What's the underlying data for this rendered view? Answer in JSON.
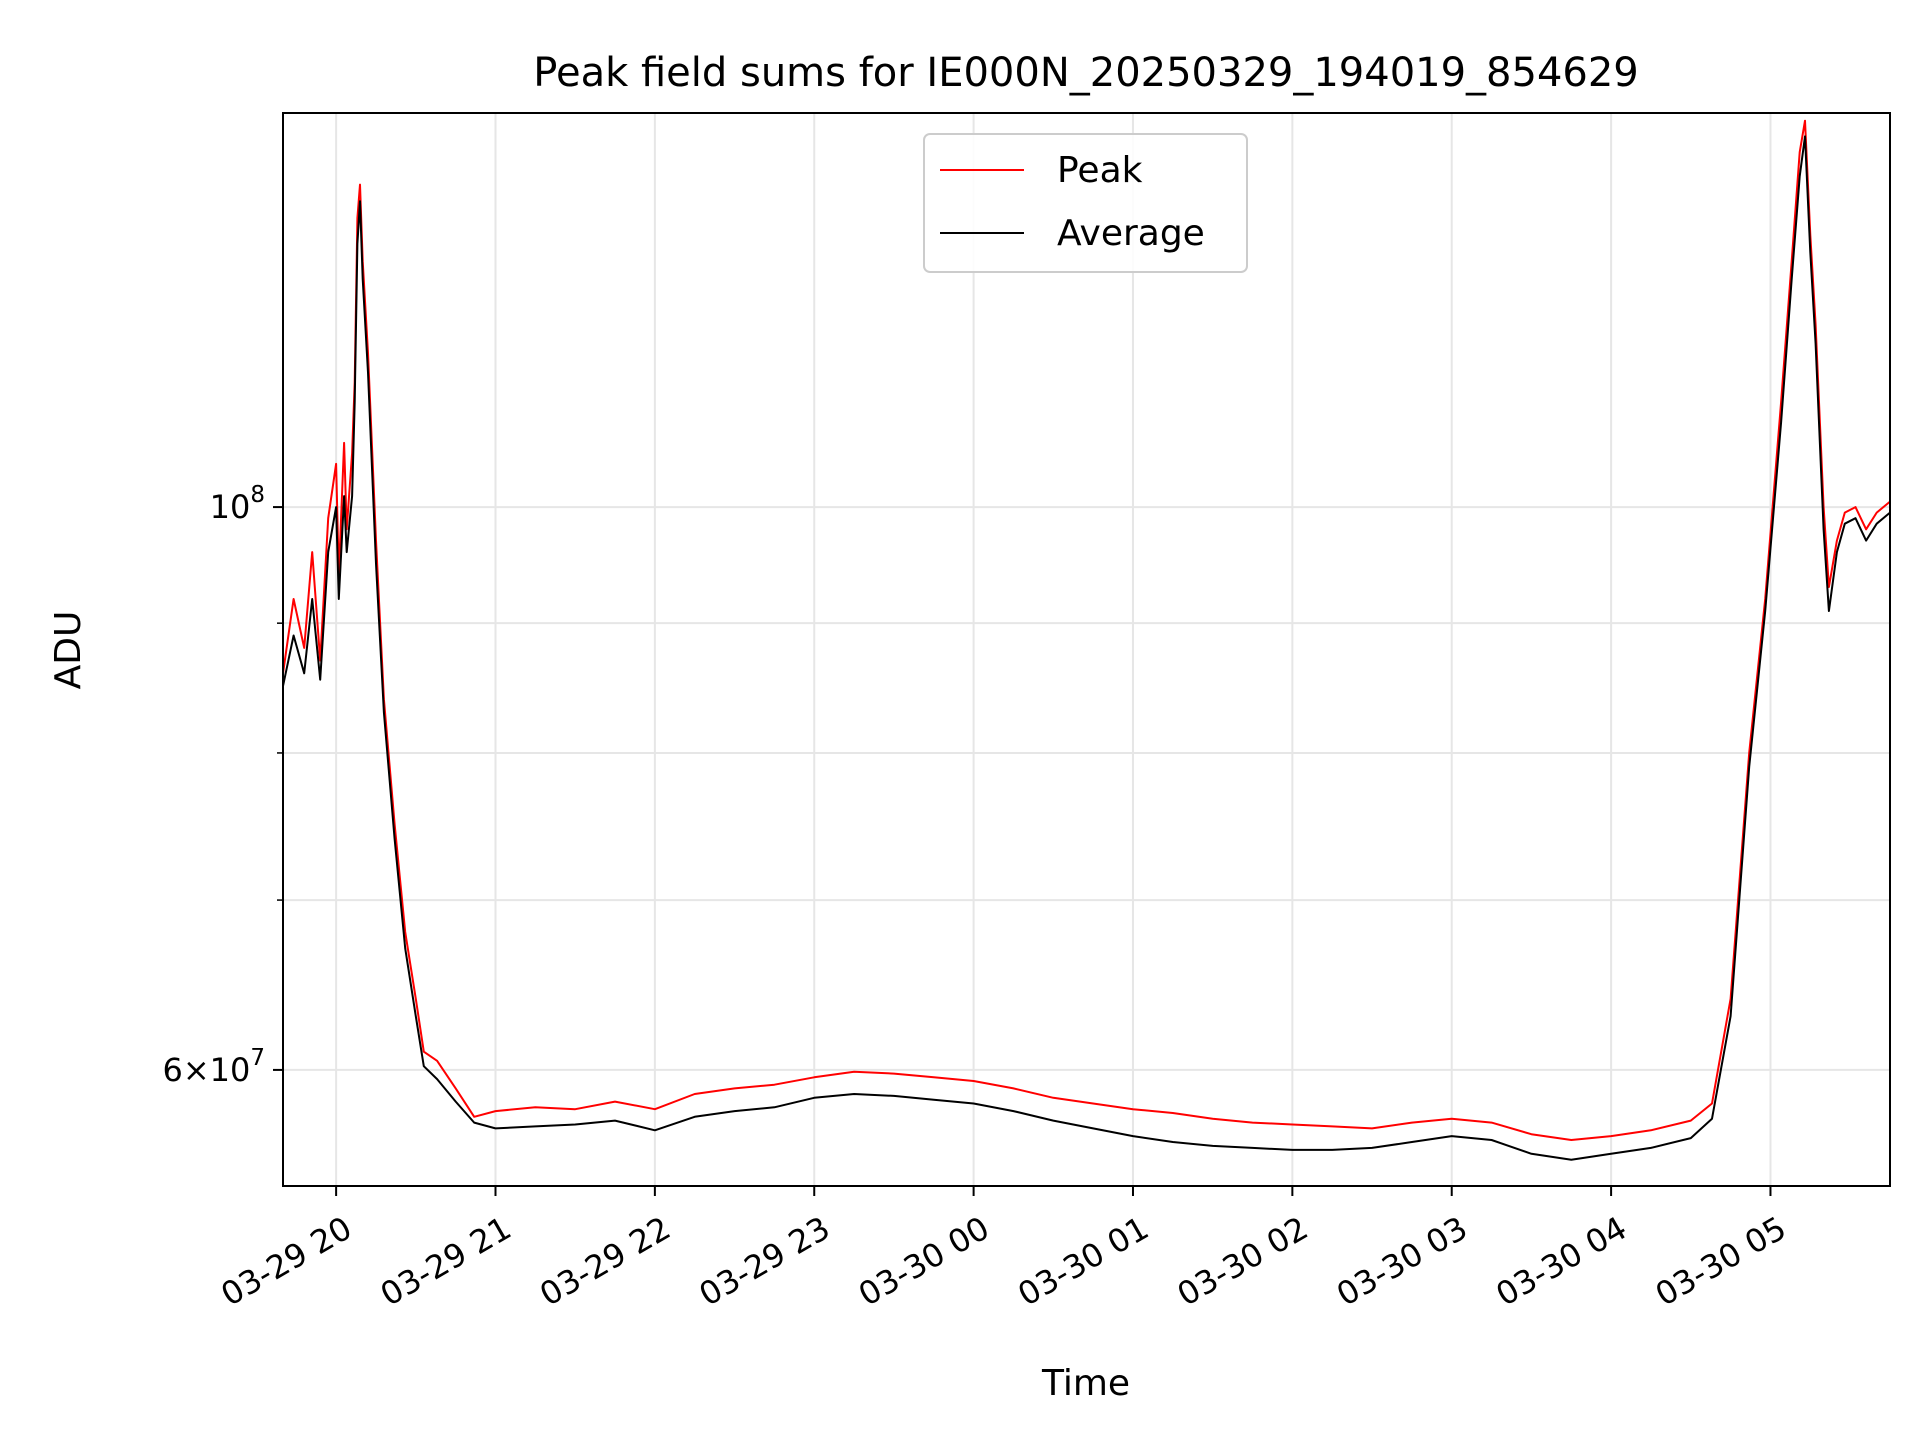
{
  "chart_data": {
    "type": "line",
    "title": "Peak field sums for IE000N_20250329_194019_854629",
    "xlabel": "Time",
    "ylabel": "ADU",
    "yscale": "log",
    "ylim": [
      54000000,
      143000000
    ],
    "xlim": [
      "03-29 19:40",
      "03-30 05:45"
    ],
    "x_ticks": [
      "03-29 20",
      "03-29 21",
      "03-29 22",
      "03-29 23",
      "03-30 00",
      "03-30 01",
      "03-30 02",
      "03-30 03",
      "03-30 04",
      "03-30 05"
    ],
    "y_ticks": [
      {
        "value": 100000000,
        "base": "10",
        "exp": "8"
      },
      {
        "value": 60000000,
        "prefix": "6×",
        "base": "10",
        "exp": "7"
      }
    ],
    "y_minor_ticks": [
      70000000,
      80000000,
      90000000
    ],
    "grid": true,
    "legend_position": "top-center",
    "series": [
      {
        "name": "Peak",
        "color": "#ff0000",
        "points": [
          [
            "03-29 19:40",
            86000000
          ],
          [
            "03-29 19:44",
            92000000
          ],
          [
            "03-29 19:48",
            88000000
          ],
          [
            "03-29 19:51",
            96000000
          ],
          [
            "03-29 19:54",
            87000000
          ],
          [
            "03-29 19:57",
            99000000
          ],
          [
            "03-29 20:00",
            104000000
          ],
          [
            "03-29 20:01",
            94000000
          ],
          [
            "03-29 20:03",
            106000000
          ],
          [
            "03-29 20:04",
            98000000
          ],
          [
            "03-29 20:06",
            105000000
          ],
          [
            "03-29 20:07",
            112000000
          ],
          [
            "03-29 20:08",
            130000000
          ],
          [
            "03-29 20:09",
            134000000
          ],
          [
            "03-29 20:10",
            125000000
          ],
          [
            "03-29 20:12",
            115000000
          ],
          [
            "03-29 20:15",
            97000000
          ],
          [
            "03-29 20:18",
            84000000
          ],
          [
            "03-29 20:22",
            75000000
          ],
          [
            "03-29 20:26",
            68000000
          ],
          [
            "03-29 20:30",
            64000000
          ],
          [
            "03-29 20:33",
            61000000
          ],
          [
            "03-29 20:38",
            60500000
          ],
          [
            "03-29 20:45",
            59000000
          ],
          [
            "03-29 20:52",
            57500000
          ],
          [
            "03-29 21:00",
            57800000
          ],
          [
            "03-29 21:15",
            58000000
          ],
          [
            "03-29 21:30",
            57900000
          ],
          [
            "03-29 21:45",
            58300000
          ],
          [
            "03-29 22:00",
            57900000
          ],
          [
            "03-29 22:15",
            58700000
          ],
          [
            "03-29 22:30",
            59000000
          ],
          [
            "03-29 22:45",
            59200000
          ],
          [
            "03-29 23:00",
            59600000
          ],
          [
            "03-29 23:15",
            59900000
          ],
          [
            "03-29 23:30",
            59800000
          ],
          [
            "03-29 23:45",
            59600000
          ],
          [
            "03-30 00:00",
            59400000
          ],
          [
            "03-30 00:15",
            59000000
          ],
          [
            "03-30 00:30",
            58500000
          ],
          [
            "03-30 00:45",
            58200000
          ],
          [
            "03-30 01:00",
            57900000
          ],
          [
            "03-30 01:15",
            57700000
          ],
          [
            "03-30 01:30",
            57400000
          ],
          [
            "03-30 01:45",
            57200000
          ],
          [
            "03-30 02:00",
            57100000
          ],
          [
            "03-30 02:15",
            57000000
          ],
          [
            "03-30 02:30",
            56900000
          ],
          [
            "03-30 02:45",
            57200000
          ],
          [
            "03-30 03:00",
            57400000
          ],
          [
            "03-30 03:15",
            57200000
          ],
          [
            "03-30 03:30",
            56600000
          ],
          [
            "03-30 03:45",
            56300000
          ],
          [
            "03-30 04:00",
            56500000
          ],
          [
            "03-30 04:15",
            56800000
          ],
          [
            "03-30 04:30",
            57300000
          ],
          [
            "03-30 04:38",
            58200000
          ],
          [
            "03-30 04:45",
            64000000
          ],
          [
            "03-30 04:52",
            80000000
          ],
          [
            "03-30 04:58",
            92000000
          ],
          [
            "03-30 05:04",
            110000000
          ],
          [
            "03-30 05:08",
            125000000
          ],
          [
            "03-30 05:11",
            138000000
          ],
          [
            "03-30 05:13",
            142000000
          ],
          [
            "03-30 05:15",
            128000000
          ],
          [
            "03-30 05:17",
            118000000
          ],
          [
            "03-30 05:20",
            100000000
          ],
          [
            "03-30 05:22",
            93000000
          ],
          [
            "03-30 05:25",
            97000000
          ],
          [
            "03-30 05:28",
            99500000
          ],
          [
            "03-30 05:32",
            100000000
          ],
          [
            "03-30 05:36",
            98000000
          ],
          [
            "03-30 05:40",
            99500000
          ],
          [
            "03-30 05:45",
            100500000
          ]
        ]
      },
      {
        "name": "Average",
        "color": "#000000",
        "points": [
          [
            "03-29 19:40",
            85000000
          ],
          [
            "03-29 19:44",
            89000000
          ],
          [
            "03-29 19:48",
            86000000
          ],
          [
            "03-29 19:51",
            92000000
          ],
          [
            "03-29 19:54",
            85500000
          ],
          [
            "03-29 19:57",
            96000000
          ],
          [
            "03-29 20:00",
            100000000
          ],
          [
            "03-29 20:01",
            92000000
          ],
          [
            "03-29 20:03",
            101000000
          ],
          [
            "03-29 20:04",
            96000000
          ],
          [
            "03-29 20:06",
            101000000
          ],
          [
            "03-29 20:07",
            110000000
          ],
          [
            "03-29 20:08",
            127000000
          ],
          [
            "03-29 20:09",
            132000000
          ],
          [
            "03-29 20:10",
            123000000
          ],
          [
            "03-29 20:12",
            113000000
          ],
          [
            "03-29 20:15",
            95000000
          ],
          [
            "03-29 20:18",
            83000000
          ],
          [
            "03-29 20:22",
            74000000
          ],
          [
            "03-29 20:26",
            67000000
          ],
          [
            "03-29 20:30",
            63000000
          ],
          [
            "03-29 20:33",
            60200000
          ],
          [
            "03-29 20:38",
            59500000
          ],
          [
            "03-29 20:45",
            58300000
          ],
          [
            "03-29 20:52",
            57200000
          ],
          [
            "03-29 21:00",
            56900000
          ],
          [
            "03-29 21:15",
            57000000
          ],
          [
            "03-29 21:30",
            57100000
          ],
          [
            "03-29 21:45",
            57300000
          ],
          [
            "03-29 22:00",
            56800000
          ],
          [
            "03-29 22:15",
            57500000
          ],
          [
            "03-29 22:30",
            57800000
          ],
          [
            "03-29 22:45",
            58000000
          ],
          [
            "03-29 23:00",
            58500000
          ],
          [
            "03-29 23:15",
            58700000
          ],
          [
            "03-29 23:30",
            58600000
          ],
          [
            "03-29 23:45",
            58400000
          ],
          [
            "03-30 00:00",
            58200000
          ],
          [
            "03-30 00:15",
            57800000
          ],
          [
            "03-30 00:30",
            57300000
          ],
          [
            "03-30 00:45",
            56900000
          ],
          [
            "03-30 01:00",
            56500000
          ],
          [
            "03-30 01:15",
            56200000
          ],
          [
            "03-30 01:30",
            56000000
          ],
          [
            "03-30 01:45",
            55900000
          ],
          [
            "03-30 02:00",
            55800000
          ],
          [
            "03-30 02:15",
            55800000
          ],
          [
            "03-30 02:30",
            55900000
          ],
          [
            "03-30 02:45",
            56200000
          ],
          [
            "03-30 03:00",
            56500000
          ],
          [
            "03-30 03:15",
            56300000
          ],
          [
            "03-30 03:30",
            55600000
          ],
          [
            "03-30 03:45",
            55300000
          ],
          [
            "03-30 04:00",
            55600000
          ],
          [
            "03-30 04:15",
            55900000
          ],
          [
            "03-30 04:30",
            56400000
          ],
          [
            "03-30 04:38",
            57400000
          ],
          [
            "03-30 04:45",
            63000000
          ],
          [
            "03-30 04:52",
            79000000
          ],
          [
            "03-30 04:58",
            91000000
          ],
          [
            "03-30 05:04",
            108000000
          ],
          [
            "03-30 05:08",
            123000000
          ],
          [
            "03-30 05:11",
            135000000
          ],
          [
            "03-30 05:13",
            140000000
          ],
          [
            "03-30 05:15",
            126000000
          ],
          [
            "03-30 05:17",
            116000000
          ],
          [
            "03-30 05:20",
            98000000
          ],
          [
            "03-30 05:22",
            91000000
          ],
          [
            "03-30 05:25",
            96000000
          ],
          [
            "03-30 05:28",
            98500000
          ],
          [
            "03-30 05:32",
            99000000
          ],
          [
            "03-30 05:36",
            97000000
          ],
          [
            "03-30 05:40",
            98500000
          ],
          [
            "03-30 05:45",
            99500000
          ]
        ]
      }
    ]
  }
}
